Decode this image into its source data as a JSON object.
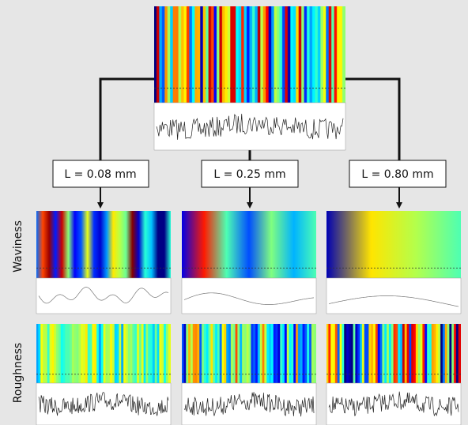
{
  "labels": [
    "L = 0.08 mm",
    "L = 0.25 mm",
    "L = 0.80 mm"
  ],
  "rows": [
    "Waviness",
    "Roughness"
  ]
}
